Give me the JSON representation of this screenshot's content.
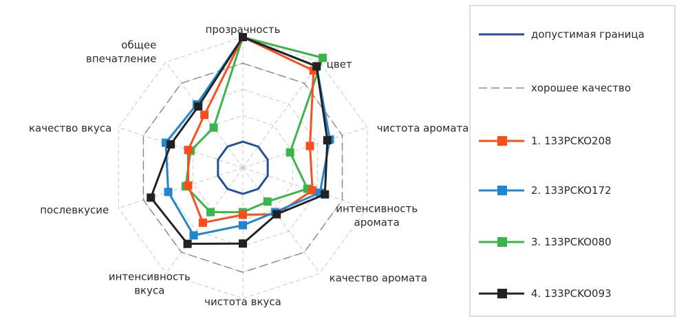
{
  "chart_data": {
    "type": "radar",
    "categories": [
      "прозрачность",
      "цвет",
      "чистота аромата",
      "интенсивность аромата",
      "качество аромата",
      "чистота вкуса",
      "интенсивность вкуса",
      "послевкусие",
      "качество вкуса",
      "общее впечатление"
    ],
    "category_lines": [
      [
        "прозрачность"
      ],
      [
        "цвет"
      ],
      [
        "чистота аромата"
      ],
      [
        "интенсивность",
        "аромата"
      ],
      [
        "качество аромата"
      ],
      [
        "чистота вкуса"
      ],
      [
        "интенсивность",
        "вкуса"
      ],
      [
        "послевкусие"
      ],
      [
        "качество вкуса"
      ],
      [
        "общее",
        "впечатление"
      ]
    ],
    "rlim": [
      0,
      5
    ],
    "grid": true,
    "legend_position": "right",
    "series": [
      {
        "name": "допустимая граница",
        "color": "#1f4e9c",
        "style": "solid",
        "marker": "none",
        "values": [
          1,
          1,
          1,
          1,
          1,
          1,
          1,
          1,
          1,
          1
        ]
      },
      {
        "name": "хорошее качество",
        "color": "#8a8a8a",
        "style": "dashed",
        "marker": "none",
        "values": [
          4,
          4,
          4,
          4,
          4,
          4,
          4,
          4,
          4,
          4
        ]
      },
      {
        "name": "1. 133PCKO208",
        "color": "#ff4c1c",
        "style": "solid",
        "marker": "square",
        "values": [
          5,
          4.6,
          2.7,
          2.8,
          2.2,
          1.8,
          2.6,
          2.2,
          2.2,
          2.5
        ]
      },
      {
        "name": "2. 133PCKO172",
        "color": "#1f86d0",
        "style": "solid",
        "marker": "square",
        "values": [
          5,
          4.8,
          3.5,
          3.1,
          2.1,
          2.2,
          3.2,
          3,
          3.1,
          3
        ]
      },
      {
        "name": "3. 133PCKO080",
        "color": "#3ab54a",
        "style": "solid",
        "marker": "square",
        "values": [
          5,
          5.2,
          1.9,
          2.6,
          1.6,
          1.7,
          2.1,
          2.3,
          2.1,
          1.9
        ]
      },
      {
        "name": "4. 133PCKO093",
        "color": "#222222",
        "style": "solid",
        "marker": "square",
        "values": [
          5,
          4.8,
          3.4,
          3.3,
          2.2,
          2.9,
          3.6,
          3.7,
          2.9,
          2.9
        ]
      }
    ]
  }
}
